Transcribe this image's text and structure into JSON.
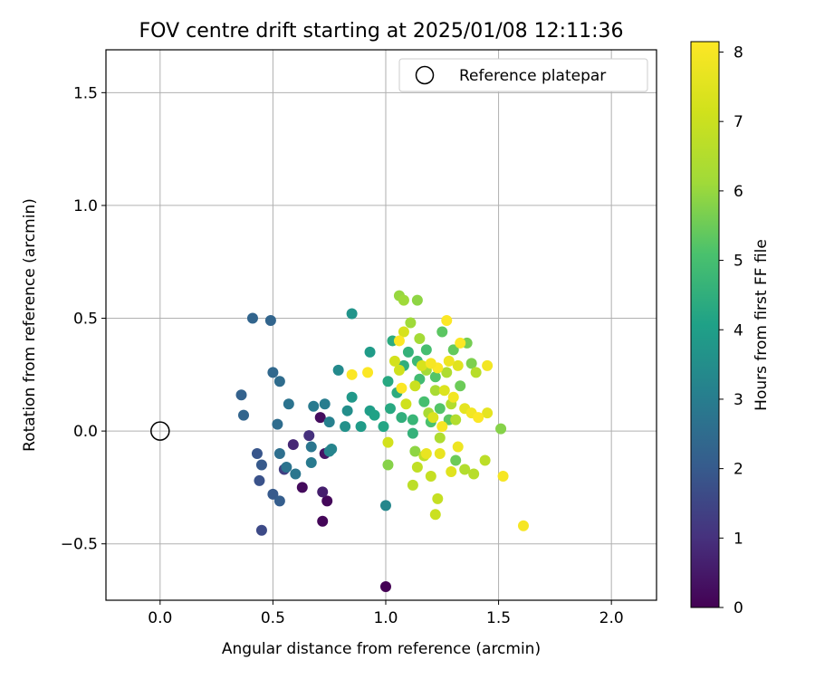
{
  "chart_data": {
    "type": "scatter",
    "title": "FOV centre drift starting at 2025/01/08 12:11:36",
    "xlabel": "Angular distance from reference (arcmin)",
    "ylabel": "Rotation from reference (arcmin)",
    "xlim": [
      -0.24,
      2.2
    ],
    "ylim": [
      -0.75,
      1.69
    ],
    "x_ticks": [
      0.0,
      0.5,
      1.0,
      1.5,
      2.0
    ],
    "x_tick_labels": [
      "0.0",
      "0.5",
      "1.0",
      "1.5",
      "2.0"
    ],
    "y_ticks": [
      -0.5,
      0.0,
      0.5,
      1.0,
      1.5
    ],
    "y_tick_labels": [
      "−0.5",
      "0.0",
      "0.5",
      "1.0",
      "1.5"
    ],
    "grid": true,
    "legend": {
      "placement": "top-right",
      "entries": [
        "Reference platepar"
      ]
    },
    "reference_point": {
      "x": 0.0,
      "y": 0.0,
      "marker": "open-circle"
    },
    "colorbar": {
      "label": "Hours from first FF file",
      "colormap": "viridis",
      "range": [
        0,
        8.15
      ],
      "ticks": [
        0,
        1,
        2,
        3,
        4,
        5,
        6,
        7,
        8
      ],
      "tick_labels": [
        "0",
        "1",
        "2",
        "3",
        "4",
        "5",
        "6",
        "7",
        "8"
      ]
    },
    "points": [
      [
        1.0,
        -0.69,
        0.0
      ],
      [
        0.72,
        -0.4,
        0.1
      ],
      [
        0.74,
        -0.31,
        0.15
      ],
      [
        0.63,
        -0.25,
        0.2
      ],
      [
        0.71,
        0.06,
        0.25
      ],
      [
        0.73,
        -0.1,
        0.4
      ],
      [
        0.72,
        -0.27,
        0.6
      ],
      [
        0.59,
        -0.06,
        0.8
      ],
      [
        0.66,
        -0.02,
        1.0
      ],
      [
        0.55,
        -0.17,
        1.3
      ],
      [
        0.45,
        -0.44,
        1.6
      ],
      [
        0.44,
        -0.22,
        1.8
      ],
      [
        0.43,
        -0.1,
        1.9
      ],
      [
        0.45,
        -0.15,
        2.0
      ],
      [
        0.5,
        -0.28,
        2.0
      ],
      [
        0.53,
        -0.31,
        2.1
      ],
      [
        0.36,
        0.16,
        2.2
      ],
      [
        0.37,
        0.07,
        2.3
      ],
      [
        0.41,
        0.5,
        2.3
      ],
      [
        0.49,
        0.49,
        2.3
      ],
      [
        0.5,
        0.26,
        2.4
      ],
      [
        0.53,
        0.22,
        2.5
      ],
      [
        0.52,
        0.03,
        2.5
      ],
      [
        0.53,
        -0.1,
        2.6
      ],
      [
        0.57,
        0.12,
        2.7
      ],
      [
        0.56,
        -0.16,
        2.7
      ],
      [
        0.6,
        -0.19,
        2.8
      ],
      [
        0.67,
        -0.07,
        2.8
      ],
      [
        0.67,
        -0.14,
        2.9
      ],
      [
        0.68,
        0.11,
        2.9
      ],
      [
        0.73,
        0.12,
        3.0
      ],
      [
        0.75,
        0.04,
        3.1
      ],
      [
        0.76,
        -0.08,
        3.2
      ],
      [
        0.75,
        -0.09,
        3.2
      ],
      [
        1.0,
        -0.33,
        3.3
      ],
      [
        0.79,
        0.27,
        3.4
      ],
      [
        0.83,
        0.09,
        3.5
      ],
      [
        0.82,
        0.02,
        3.6
      ],
      [
        0.85,
        0.52,
        3.7
      ],
      [
        0.85,
        0.15,
        3.8
      ],
      [
        0.89,
        0.02,
        3.9
      ],
      [
        0.93,
        0.35,
        3.9
      ],
      [
        0.93,
        0.09,
        4.0
      ],
      [
        0.95,
        0.07,
        4.1
      ],
      [
        0.99,
        0.02,
        4.2
      ],
      [
        1.01,
        0.22,
        4.3
      ],
      [
        1.02,
        0.1,
        4.3
      ],
      [
        1.03,
        0.4,
        4.4
      ],
      [
        1.05,
        0.17,
        4.4
      ],
      [
        1.07,
        0.06,
        4.5
      ],
      [
        1.08,
        0.29,
        4.5
      ],
      [
        1.1,
        0.35,
        4.6
      ],
      [
        1.12,
        -0.01,
        4.6
      ],
      [
        1.12,
        0.05,
        4.7
      ],
      [
        1.14,
        0.31,
        4.8
      ],
      [
        1.15,
        0.23,
        4.9
      ],
      [
        1.17,
        0.13,
        5.0
      ],
      [
        1.18,
        0.36,
        5.0
      ],
      [
        1.2,
        0.04,
        5.1
      ],
      [
        1.22,
        0.24,
        5.2
      ],
      [
        1.24,
        0.1,
        5.2
      ],
      [
        1.25,
        0.44,
        5.3
      ],
      [
        1.28,
        0.05,
        5.3
      ],
      [
        1.3,
        0.36,
        5.4
      ],
      [
        1.31,
        -0.13,
        5.5
      ],
      [
        1.33,
        0.2,
        5.5
      ],
      [
        1.36,
        0.39,
        5.6
      ],
      [
        1.38,
        0.3,
        5.7
      ],
      [
        1.51,
        0.01,
        5.8
      ],
      [
        1.01,
        -0.15,
        5.8
      ],
      [
        1.13,
        -0.09,
        5.9
      ],
      [
        1.14,
        0.58,
        5.9
      ],
      [
        1.06,
        0.6,
        6.0
      ],
      [
        1.08,
        0.58,
        6.1
      ],
      [
        1.11,
        0.48,
        6.1
      ],
      [
        1.15,
        0.41,
        6.2
      ],
      [
        1.18,
        0.27,
        6.2
      ],
      [
        1.19,
        0.08,
        6.3
      ],
      [
        1.22,
        0.18,
        6.3
      ],
      [
        1.24,
        -0.03,
        6.4
      ],
      [
        1.27,
        0.26,
        6.4
      ],
      [
        1.29,
        0.12,
        6.5
      ],
      [
        1.31,
        0.05,
        6.5
      ],
      [
        1.35,
        -0.17,
        6.5
      ],
      [
        1.39,
        -0.19,
        6.6
      ],
      [
        1.4,
        0.26,
        6.6
      ],
      [
        1.44,
        -0.13,
        6.7
      ],
      [
        1.12,
        -0.24,
        6.7
      ],
      [
        1.14,
        -0.16,
        6.8
      ],
      [
        1.17,
        -0.11,
        6.8
      ],
      [
        1.2,
        -0.2,
        6.9
      ],
      [
        1.23,
        -0.3,
        6.9
      ],
      [
        1.22,
        -0.37,
        7.0
      ],
      [
        1.13,
        0.2,
        7.0
      ],
      [
        1.09,
        0.12,
        7.1
      ],
      [
        1.06,
        0.27,
        7.1
      ],
      [
        1.01,
        -0.05,
        7.2
      ],
      [
        1.04,
        0.31,
        7.2
      ],
      [
        1.08,
        0.44,
        7.3
      ],
      [
        1.16,
        0.29,
        7.3
      ],
      [
        1.21,
        0.06,
        7.4
      ],
      [
        1.26,
        0.18,
        7.4
      ],
      [
        1.29,
        -0.18,
        7.5
      ],
      [
        1.32,
        0.29,
        7.5
      ],
      [
        1.35,
        0.1,
        7.6
      ],
      [
        1.45,
        0.08,
        7.6
      ],
      [
        1.18,
        -0.1,
        7.7
      ],
      [
        1.24,
        -0.1,
        7.7
      ],
      [
        1.28,
        0.31,
        7.8
      ],
      [
        1.32,
        -0.07,
        7.8
      ],
      [
        1.38,
        0.08,
        7.9
      ],
      [
        1.45,
        0.29,
        7.9
      ],
      [
        1.52,
        -0.2,
        8.0
      ],
      [
        1.61,
        -0.42,
        8.0
      ],
      [
        1.27,
        0.49,
        8.1
      ],
      [
        0.85,
        0.25,
        8.1
      ],
      [
        0.92,
        0.26,
        8.1
      ],
      [
        1.06,
        0.4,
        8.1
      ],
      [
        1.07,
        0.19,
        8.1
      ],
      [
        1.23,
        0.28,
        8.1
      ],
      [
        1.33,
        0.39,
        8.1
      ],
      [
        1.41,
        0.06,
        8.1
      ],
      [
        1.2,
        0.3,
        8.0
      ],
      [
        1.25,
        0.02,
        8.0
      ],
      [
        1.3,
        0.15,
        7.9
      ]
    ]
  }
}
